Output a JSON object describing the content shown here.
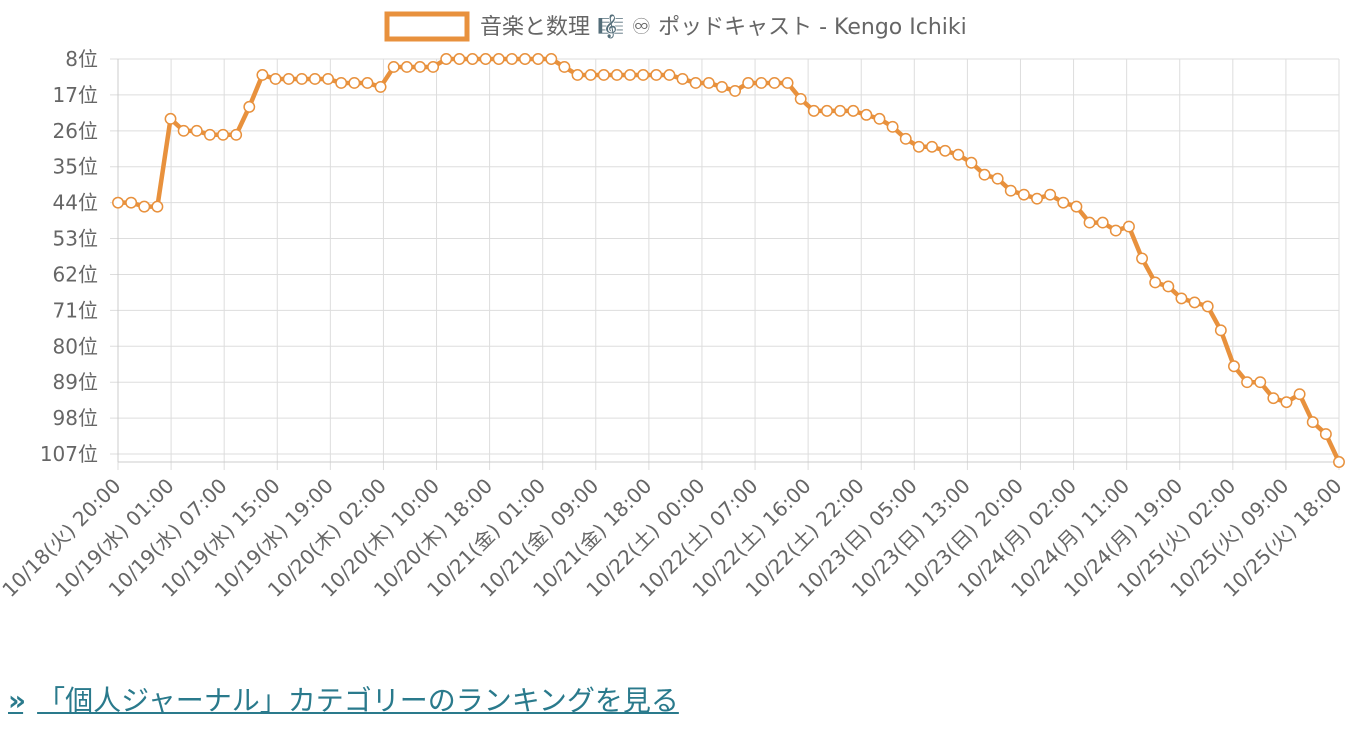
{
  "chart_data": {
    "type": "line",
    "series": [
      {
        "name": "音楽と数理 🎼 ♾ ポッドキャスト - Kengo Ichiki",
        "color": "#e8913d",
        "values": [
          44,
          44,
          45,
          45,
          23,
          26,
          26,
          27,
          27,
          27,
          20,
          12,
          13,
          13,
          13,
          13,
          13,
          14,
          14,
          14,
          15,
          10,
          10,
          10,
          10,
          8,
          8,
          8,
          8,
          8,
          8,
          8,
          8,
          8,
          10,
          12,
          12,
          12,
          12,
          12,
          12,
          12,
          12,
          13,
          14,
          14,
          15,
          16,
          14,
          14,
          14,
          14,
          18,
          21,
          21,
          21,
          21,
          22,
          23,
          25,
          28,
          30,
          30,
          31,
          32,
          34,
          37,
          38,
          41,
          42,
          43,
          42,
          44,
          45,
          49,
          49,
          51,
          50,
          58,
          64,
          65,
          68,
          69,
          70,
          76,
          85,
          89,
          89,
          93,
          94,
          92,
          99,
          102,
          109
        ]
      }
    ],
    "x_tick_labels": [
      "10/18(火) 20:00",
      "10/19(水) 01:00",
      "10/19(水) 07:00",
      "10/19(水) 15:00",
      "10/19(水) 19:00",
      "10/20(木) 02:00",
      "10/20(木) 10:00",
      "10/20(木) 18:00",
      "10/21(金) 01:00",
      "10/21(金) 09:00",
      "10/21(金) 18:00",
      "10/22(土) 00:00",
      "10/22(土) 07:00",
      "10/22(土) 16:00",
      "10/22(土) 22:00",
      "10/23(日) 05:00",
      "10/23(日) 13:00",
      "10/23(日) 20:00",
      "10/24(月) 02:00",
      "10/24(月) 11:00",
      "10/24(月) 19:00",
      "10/25(火) 02:00",
      "10/25(火) 09:00",
      "10/25(火) 18:00"
    ],
    "y_tick_labels": [
      "8位",
      "17位",
      "26位",
      "35位",
      "44位",
      "53位",
      "62位",
      "71位",
      "80位",
      "89位",
      "98位",
      "107位"
    ],
    "y_ticks": [
      8,
      17,
      26,
      35,
      44,
      53,
      62,
      71,
      80,
      89,
      98,
      107
    ],
    "ylim": [
      8,
      109
    ],
    "y_reversed": true,
    "grid": true,
    "legend": "top"
  },
  "link": {
    "icon": "»",
    "text": "「個人ジャーナル」カテゴリーのランキングを見る"
  }
}
